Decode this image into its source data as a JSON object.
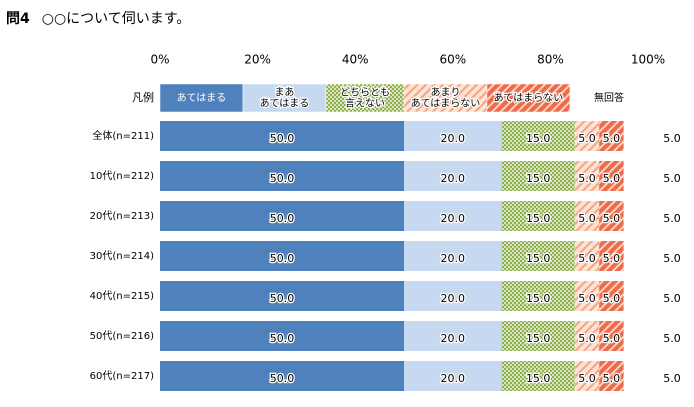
{
  "question": {
    "number": "問4",
    "text": "○○について伺います。"
  },
  "legend_label": "凡例",
  "chart_data": {
    "type": "bar",
    "orientation": "horizontal",
    "stacked": true,
    "xlim": [
      0,
      100
    ],
    "ticks": [
      "0%",
      "20%",
      "40%",
      "60%",
      "80%",
      "100%"
    ],
    "grid": false,
    "categories": [
      "全体(n=211)",
      "10代(n=212)",
      "20代(n=213)",
      "30代(n=214)",
      "40代(n=215)",
      "50代(n=216)",
      "60代(n=217)"
    ],
    "series": [
      {
        "name": "あてはまる",
        "values": [
          50.0,
          50.0,
          50.0,
          50.0,
          50.0,
          50.0,
          50.0
        ],
        "color": "#4f81bd",
        "pattern": "solid"
      },
      {
        "name": "まあ\nあてはまる",
        "values": [
          20.0,
          20.0,
          20.0,
          20.0,
          20.0,
          20.0,
          20.0
        ],
        "color": "#c6d9f1",
        "pattern": "solid"
      },
      {
        "name": "どちらとも\n言えない",
        "values": [
          15.0,
          15.0,
          15.0,
          15.0,
          15.0,
          15.0,
          15.0
        ],
        "color": "#9bbb59",
        "pattern": "dots"
      },
      {
        "name": "あまり\nあてはまらない",
        "values": [
          5.0,
          5.0,
          5.0,
          5.0,
          5.0,
          5.0,
          5.0
        ],
        "color": "#f4a582",
        "pattern": "diagonal-light"
      },
      {
        "name": "あてはまらない",
        "values": [
          5.0,
          5.0,
          5.0,
          5.0,
          5.0,
          5.0,
          5.0
        ],
        "color": "#ee6a48",
        "pattern": "diagonal-dark"
      },
      {
        "name": "無回答",
        "values": [
          5.0,
          5.0,
          5.0,
          5.0,
          5.0,
          5.0,
          5.0
        ],
        "color": "#ffffff",
        "pattern": "none",
        "label_outside": true
      }
    ],
    "value_format": "0.0"
  }
}
